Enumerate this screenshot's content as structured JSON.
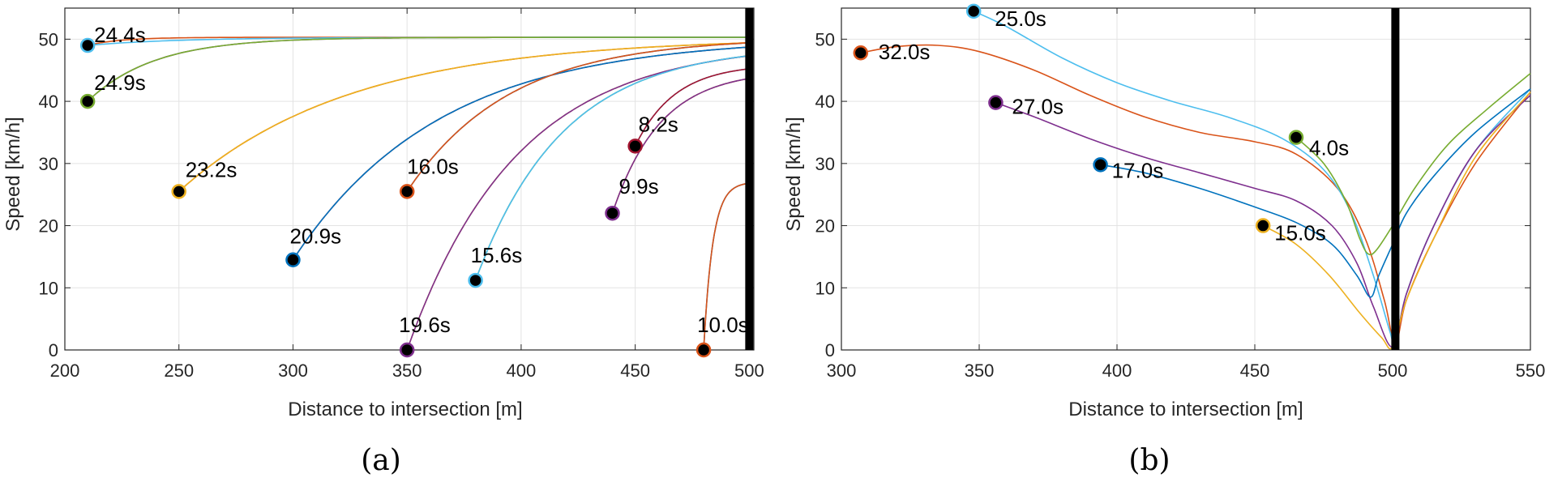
{
  "colors": {
    "blue": "#0072BD",
    "orange": "#D95319",
    "yellow": "#EDB120",
    "purple": "#7E2F8E",
    "green": "#77AC30",
    "cyan": "#4DBEEE",
    "maroon": "#A2142F",
    "grid": "#e3e3e3",
    "axis": "#262626",
    "marker_fill": "#000000",
    "stop_line": "#000000"
  },
  "chart_data": [
    {
      "type": "line",
      "caption": "(a)",
      "xlabel": "Distance to intersection [m]",
      "ylabel": "Speed [km/h]",
      "xlim": [
        200,
        502
      ],
      "ylim": [
        0,
        55
      ],
      "xticks": [
        200,
        250,
        300,
        350,
        400,
        450,
        500
      ],
      "yticks": [
        0,
        10,
        20,
        30,
        40,
        50
      ],
      "stop_line_x": 500,
      "grid": true,
      "series": [
        {
          "name": "v1",
          "color": "cyan",
          "start": [
            210,
            49
          ],
          "end": [
            500,
            50.3
          ],
          "k": 0.14,
          "label": "24.4s"
        },
        {
          "name": "v2",
          "color": "green",
          "start": [
            210,
            40
          ],
          "end": [
            500,
            50.3
          ],
          "k": 0.1,
          "label": "24.9s"
        },
        {
          "name": "v3",
          "color": "yellow",
          "start": [
            250,
            25.5
          ],
          "end": [
            500,
            50.3
          ],
          "k": 0.3,
          "label": "23.2s"
        },
        {
          "name": "v4",
          "color": "blue",
          "start": [
            300,
            14.5
          ],
          "end": [
            500,
            50.3
          ],
          "k": 0.32,
          "label": "20.9s"
        },
        {
          "name": "v5",
          "color": "orange",
          "start": [
            350,
            25.5
          ],
          "end": [
            500,
            50.3
          ],
          "k": 0.3,
          "label": "16.0s"
        },
        {
          "name": "v6",
          "color": "purple",
          "start": [
            350,
            0
          ],
          "end": [
            500,
            49.5
          ],
          "k": 0.32,
          "label": "19.6s"
        },
        {
          "name": "v7",
          "color": "cyan",
          "start": [
            380,
            11.2
          ],
          "end": [
            500,
            49
          ],
          "k": 0.32,
          "label": "15.6s"
        },
        {
          "name": "v8",
          "color": "purple",
          "start": [
            440,
            22
          ],
          "end": [
            500,
            45
          ],
          "k": 0.35,
          "label": "9.9s"
        },
        {
          "name": "v9",
          "color": "maroon",
          "start": [
            450,
            32.8
          ],
          "end": [
            500,
            46
          ],
          "k": 0.35,
          "label": "8.2s"
        },
        {
          "name": "v10",
          "color": "orange",
          "start": [
            480,
            0
          ],
          "end": [
            500,
            27
          ],
          "k": 0.2,
          "label": "10.0s"
        }
      ],
      "extra_curves": [
        {
          "color": "orange",
          "start": [
            210,
            49
          ],
          "end": [
            500,
            50.3
          ],
          "k": 0.05
        },
        {
          "color": "purple",
          "start": [
            210,
            40
          ],
          "end": [
            500,
            50.3
          ],
          "k": 0.1
        },
        {
          "color": "orange",
          "start": [
            250,
            25.5
          ],
          "end": [
            500,
            50.3
          ],
          "k": 0.3
        },
        {
          "color": "maroon",
          "start": [
            300,
            14.5
          ],
          "end": [
            500,
            50.3
          ],
          "k": 0.32
        },
        {
          "color": "blue",
          "start": [
            350,
            25.5
          ],
          "end": [
            500,
            50.3
          ],
          "k": 0.3
        },
        {
          "color": "yellow",
          "start": [
            350,
            0
          ],
          "end": [
            500,
            49.5
          ],
          "k": 0.32
        },
        {
          "color": "green",
          "start": [
            380,
            11.2
          ],
          "end": [
            500,
            49
          ],
          "k": 0.32
        },
        {
          "color": "yellow",
          "start": [
            440,
            22
          ],
          "end": [
            500,
            45
          ],
          "k": 0.35
        },
        {
          "color": "cyan",
          "start": [
            450,
            32.8
          ],
          "end": [
            500,
            46
          ],
          "k": 0.35
        },
        {
          "color": "blue",
          "start": [
            480,
            0
          ],
          "end": [
            500,
            27
          ],
          "k": 0.2
        }
      ]
    },
    {
      "type": "line",
      "caption": "(b)",
      "xlabel": "Distance to intersection [m]",
      "ylabel": "Speed [km/h]",
      "xlim": [
        300,
        550
      ],
      "ylim": [
        0,
        55
      ],
      "xticks": [
        300,
        350,
        400,
        450,
        500,
        550
      ],
      "yticks": [
        0,
        10,
        20,
        30,
        40,
        50
      ],
      "stop_line_x": 501,
      "grid": true,
      "series": [
        {
          "name": "v1",
          "color": "orange",
          "edge": "orange",
          "label": "32.0s",
          "points": [
            [
              307,
              47.8
            ],
            [
              320,
              48.8
            ],
            [
              335,
              49
            ],
            [
              350,
              48
            ],
            [
              370,
              45
            ],
            [
              390,
              41
            ],
            [
              410,
              37.5
            ],
            [
              430,
              35
            ],
            [
              450,
              33.5
            ],
            [
              465,
              31.5
            ],
            [
              480,
              26
            ],
            [
              490,
              18
            ],
            [
              497,
              8
            ],
            [
              501,
              1
            ],
            [
              505,
              8
            ],
            [
              515,
              18
            ],
            [
              530,
              30
            ],
            [
              550,
              41.5
            ]
          ]
        },
        {
          "name": "v2",
          "color": "cyan",
          "edge": "cyan",
          "label": "25.0s",
          "points": [
            [
              348,
              54.5
            ],
            [
              360,
              52
            ],
            [
              380,
              47
            ],
            [
              400,
              43
            ],
            [
              420,
              40
            ],
            [
              440,
              37.5
            ],
            [
              460,
              34
            ],
            [
              475,
              29
            ],
            [
              485,
              22
            ],
            [
              493,
              12
            ],
            [
              499,
              3
            ],
            [
              501,
              1
            ],
            [
              505,
              9
            ],
            [
              515,
              20
            ],
            [
              530,
              32
            ],
            [
              550,
              42
            ]
          ]
        },
        {
          "name": "v3",
          "color": "purple",
          "edge": "purple",
          "label": "27.0s",
          "points": [
            [
              356,
              39.8
            ],
            [
              370,
              37.5
            ],
            [
              390,
              34
            ],
            [
              410,
              31
            ],
            [
              430,
              28.5
            ],
            [
              450,
              26
            ],
            [
              465,
              24
            ],
            [
              478,
              20
            ],
            [
              487,
              14
            ],
            [
              493,
              7
            ],
            [
              500,
              0.5
            ],
            [
              505,
              9
            ],
            [
              515,
              20
            ],
            [
              530,
              32
            ],
            [
              550,
              41
            ]
          ]
        },
        {
          "name": "v4",
          "color": "blue",
          "edge": "blue",
          "label": "17.0s",
          "points": [
            [
              394,
              29.8
            ],
            [
              410,
              28.5
            ],
            [
              430,
              26
            ],
            [
              450,
              23
            ],
            [
              465,
              20.5
            ],
            [
              478,
              17
            ],
            [
              487,
              12
            ],
            [
              492,
              8.5
            ],
            [
              495,
              12
            ],
            [
              500,
              17
            ],
            [
              505,
              22
            ],
            [
              515,
              28
            ],
            [
              530,
              35
            ],
            [
              550,
              42
            ]
          ]
        },
        {
          "name": "v5",
          "color": "green",
          "edge": "green",
          "label": "4.0s",
          "points": [
            [
              465,
              34.2
            ],
            [
              475,
              30
            ],
            [
              483,
              24
            ],
            [
              488,
              18
            ],
            [
              491,
              15.5
            ],
            [
              494,
              16
            ],
            [
              500,
              20
            ],
            [
              508,
              26
            ],
            [
              520,
              33
            ],
            [
              535,
              39
            ],
            [
              550,
              44.5
            ]
          ]
        },
        {
          "name": "v6",
          "color": "yellow",
          "edge": "yellow",
          "label": "15.0s",
          "points": [
            [
              453,
              20
            ],
            [
              465,
              17
            ],
            [
              477,
              12
            ],
            [
              488,
              6
            ],
            [
              496,
              2
            ],
            [
              500,
              0.5
            ],
            [
              505,
              8
            ],
            [
              515,
              18
            ],
            [
              530,
              31
            ],
            [
              550,
              41.5
            ]
          ]
        }
      ]
    }
  ]
}
